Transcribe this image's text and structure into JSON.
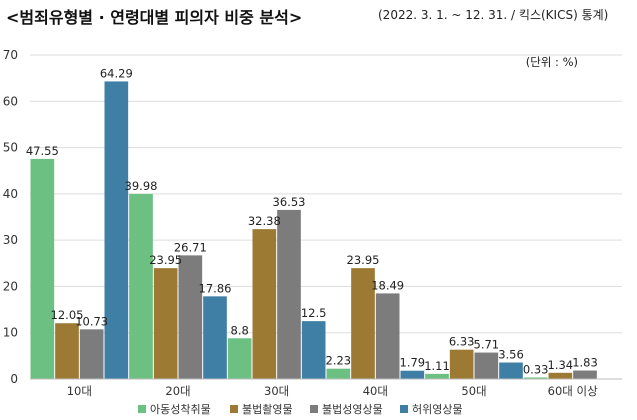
{
  "title": "<범죄유형별 · 연령대별 피의자 비중 분석>",
  "subtitle": "(2022. 3. 1. ~ 12. 31. / 킥스(KICS) 통계)",
  "chart_data": {
    "type": "bar",
    "title": "<범죄유형별 · 연령대별 피의자 비중 분석>",
    "unit_label": "(단위 : %)",
    "categories": [
      "10대",
      "20대",
      "30대",
      "40대",
      "50대",
      "60대 이상"
    ],
    "series": [
      {
        "name": "아동성착취물",
        "color": "#6cc082",
        "values": [
          47.55,
          39.98,
          8.8,
          2.23,
          1.11,
          0.33
        ]
      },
      {
        "name": "불법촬영물",
        "color": "#9c7a34",
        "values": [
          12.05,
          23.95,
          32.38,
          23.95,
          6.33,
          1.34
        ]
      },
      {
        "name": "불법성영상물",
        "color": "#7c7c7c",
        "values": [
          10.73,
          26.71,
          36.53,
          18.49,
          5.71,
          1.83
        ]
      },
      {
        "name": "허위영상물",
        "color": "#3f7fa6",
        "values": [
          64.29,
          17.86,
          12.5,
          1.79,
          3.56,
          null
        ]
      }
    ],
    "ylim": [
      0,
      70
    ],
    "yticks": [
      0,
      10,
      20,
      30,
      40,
      50,
      60,
      70
    ],
    "grid": true,
    "legend": "bottom"
  }
}
